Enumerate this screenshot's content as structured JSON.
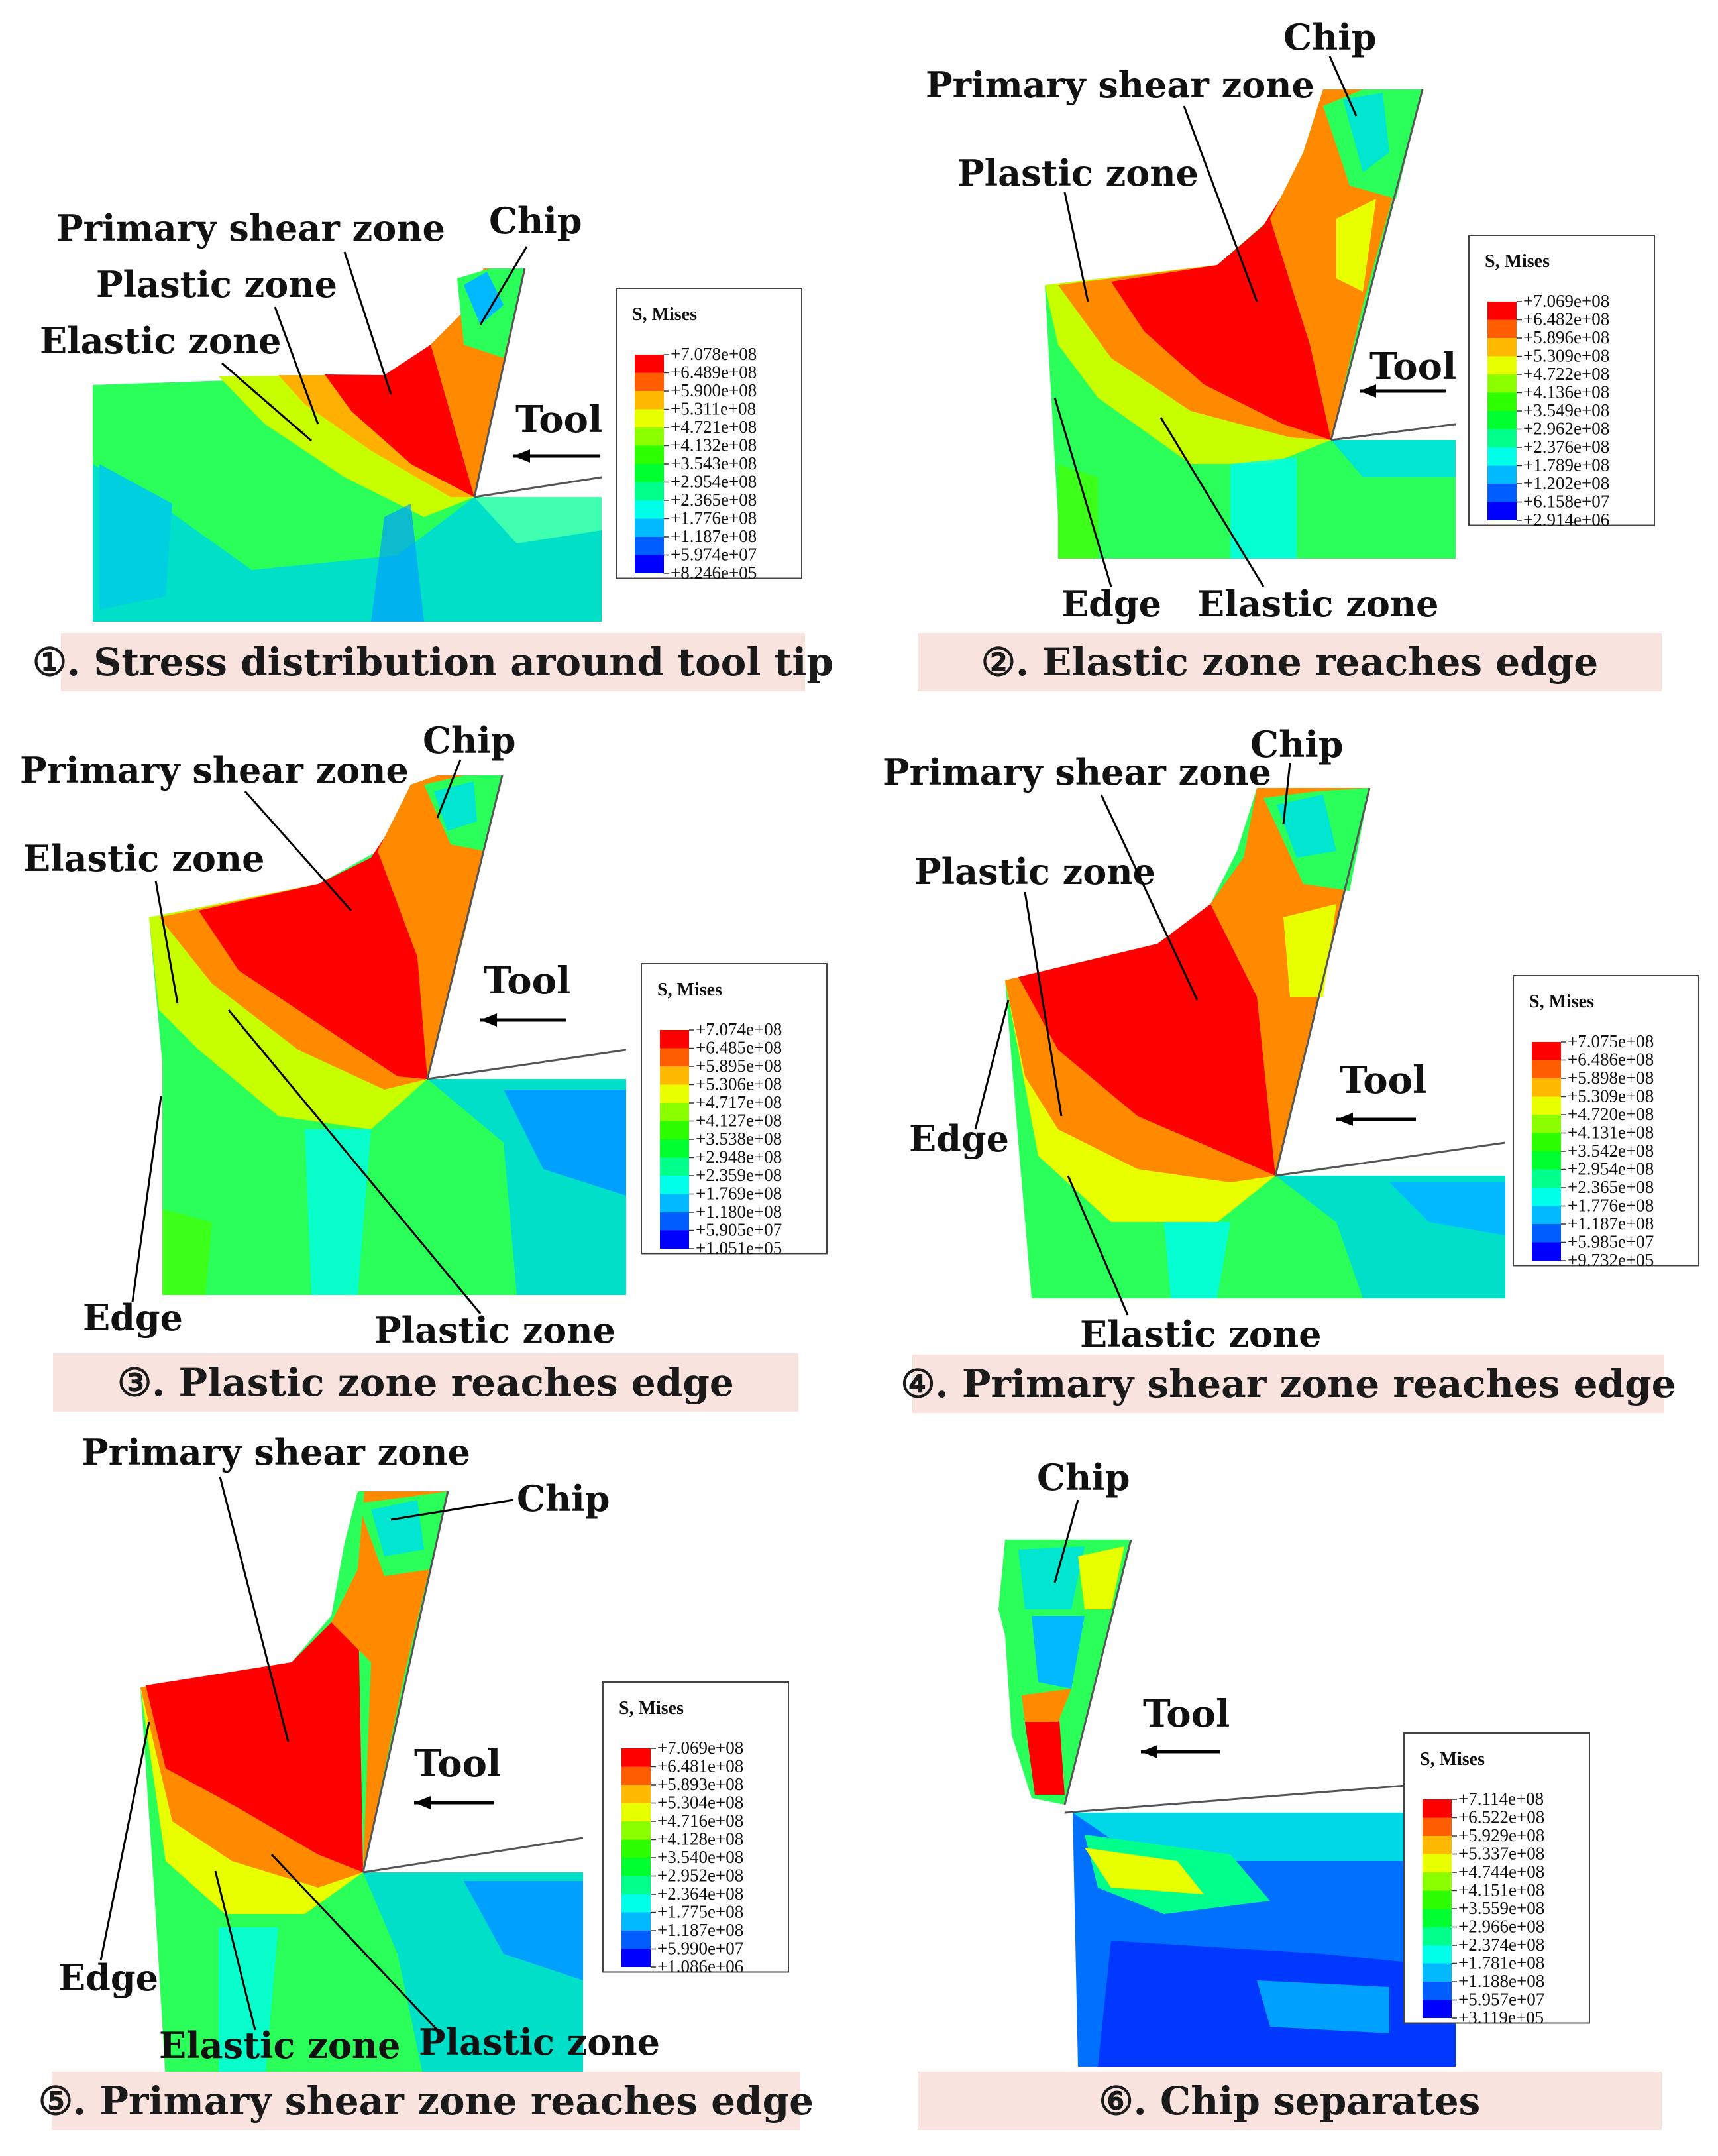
{
  "colormap": [
    "#0000ff",
    "#005dff",
    "#00b9ff",
    "#00ffe8",
    "#00ff8b",
    "#00ff2e",
    "#2eff00",
    "#8bff00",
    "#e8ff00",
    "#ffb900",
    "#ff5d00",
    "#ff0000"
  ],
  "panels": [
    {
      "caption": "①. Stress distribution around tool tip",
      "tool_label": "Tool",
      "legend": {
        "title": "S, Mises",
        "values": [
          "+7.078e+08",
          "+6.489e+08",
          "+5.900e+08",
          "+5.311e+08",
          "+4.721e+08",
          "+4.132e+08",
          "+3.543e+08",
          "+2.954e+08",
          "+2.365e+08",
          "+1.776e+08",
          "+1.187e+08",
          "+5.974e+07",
          "+8.246e+05"
        ]
      },
      "annotations": {
        "chip": "Chip",
        "primary_shear_zone": "Primary shear zone",
        "plastic_zone": "Plastic zone",
        "elastic_zone": "Elastic zone"
      }
    },
    {
      "caption": "②. Elastic zone reaches edge",
      "tool_label": "Tool",
      "legend": {
        "title": "S, Mises",
        "values": [
          "+7.069e+08",
          "+6.482e+08",
          "+5.896e+08",
          "+5.309e+08",
          "+4.722e+08",
          "+4.136e+08",
          "+3.549e+08",
          "+2.962e+08",
          "+2.376e+08",
          "+1.789e+08",
          "+1.202e+08",
          "+6.158e+07",
          "+2.914e+06"
        ]
      },
      "annotations": {
        "chip": "Chip",
        "primary_shear_zone": "Primary shear zone",
        "plastic_zone": "Plastic zone",
        "edge": "Edge",
        "elastic_zone": "Elastic zone"
      }
    },
    {
      "caption": "③. Plastic zone reaches edge",
      "tool_label": "Tool",
      "legend": {
        "title": "S, Mises",
        "values": [
          "+7.074e+08",
          "+6.485e+08",
          "+5.895e+08",
          "+5.306e+08",
          "+4.717e+08",
          "+4.127e+08",
          "+3.538e+08",
          "+2.948e+08",
          "+2.359e+08",
          "+1.769e+08",
          "+1.180e+08",
          "+5.905e+07",
          "+1.051e+05"
        ]
      },
      "annotations": {
        "chip": "Chip",
        "primary_shear_zone": "Primary shear zone",
        "elastic_zone": "Elastic zone",
        "edge": "Edge",
        "plastic_zone": "Plastic zone"
      }
    },
    {
      "caption": "④. Primary shear zone reaches edge",
      "tool_label": "Tool",
      "legend": {
        "title": "S, Mises",
        "values": [
          "+7.075e+08",
          "+6.486e+08",
          "+5.898e+08",
          "+5.309e+08",
          "+4.720e+08",
          "+4.131e+08",
          "+3.542e+08",
          "+2.954e+08",
          "+2.365e+08",
          "+1.776e+08",
          "+1.187e+08",
          "+5.985e+07",
          "+9.732e+05"
        ]
      },
      "annotations": {
        "chip": "Chip",
        "primary_shear_zone": "Primary shear zone",
        "plastic_zone": "Plastic zone",
        "edge": "Edge",
        "elastic_zone": "Elastic zone"
      }
    },
    {
      "caption": "⑤. Primary shear zone reaches edge",
      "tool_label": "Tool",
      "legend": {
        "title": "S, Mises",
        "values": [
          "+7.069e+08",
          "+6.481e+08",
          "+5.893e+08",
          "+5.304e+08",
          "+4.716e+08",
          "+4.128e+08",
          "+3.540e+08",
          "+2.952e+08",
          "+2.364e+08",
          "+1.775e+08",
          "+1.187e+08",
          "+5.990e+07",
          "+1.086e+06"
        ]
      },
      "annotations": {
        "primary_shear_zone": "Primary shear zone",
        "chip": "Chip",
        "edge": "Edge",
        "elastic_zone": "Elastic zone",
        "plastic_zone": "Plastic zone"
      }
    },
    {
      "caption": "⑥. Chip separates",
      "tool_label": "Tool",
      "legend": {
        "title": "S, Mises",
        "values": [
          "+7.114e+08",
          "+6.522e+08",
          "+5.929e+08",
          "+5.337e+08",
          "+4.744e+08",
          "+4.151e+08",
          "+3.559e+08",
          "+2.966e+08",
          "+2.374e+08",
          "+1.781e+08",
          "+1.188e+08",
          "+5.957e+07",
          "+3.119e+05"
        ]
      },
      "annotations": {
        "chip": "Chip"
      }
    }
  ]
}
